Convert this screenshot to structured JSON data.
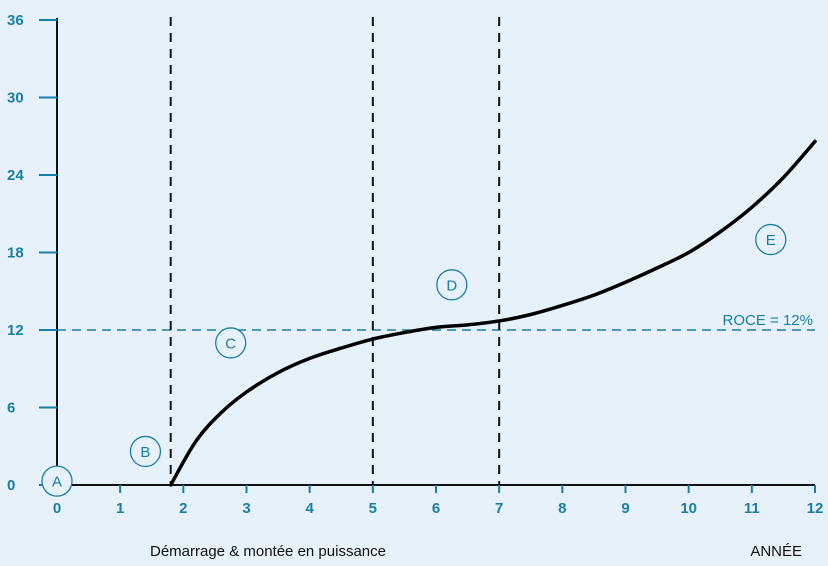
{
  "chart_data": {
    "type": "line",
    "title": "",
    "xlabel": "ANNÉE",
    "ylabel": "",
    "x_ticks": [
      "0",
      "1",
      "2",
      "3",
      "4",
      "5",
      "6",
      "7",
      "8",
      "9",
      "10",
      "11",
      "12"
    ],
    "y_ticks": [
      "0",
      "6",
      "12",
      "18",
      "24",
      "30",
      "36"
    ],
    "xlim": [
      0,
      12
    ],
    "ylim": [
      0,
      36
    ],
    "grid": false,
    "series": [
      {
        "x": [
          0,
          1.8,
          1.8,
          2.2,
          2.6,
          3.0,
          3.5,
          4.0,
          4.5,
          5.0,
          5.5,
          6.0,
          6.5,
          7.0,
          7.5,
          8.0,
          8.5,
          9.0,
          9.5,
          10.0,
          10.5,
          11.0,
          11.5,
          12.0
        ],
        "y": [
          0,
          0,
          0,
          3.4,
          5.6,
          7.2,
          8.7,
          9.8,
          10.6,
          11.3,
          11.8,
          12.2,
          12.4,
          12.7,
          13.2,
          13.9,
          14.7,
          15.7,
          16.8,
          18.0,
          19.6,
          21.5,
          23.8,
          26.6
        ]
      }
    ],
    "reference_lines": [
      {
        "orientation": "horizontal",
        "value": 12,
        "label": "ROCE = 12%",
        "style": "dashed",
        "color": "#1a7fa8"
      },
      {
        "orientation": "vertical",
        "value": 1.8,
        "style": "dashed",
        "color": "#111111"
      },
      {
        "orientation": "vertical",
        "value": 5,
        "style": "dashed",
        "color": "#111111"
      },
      {
        "orientation": "vertical",
        "value": 7,
        "style": "dashed",
        "color": "#111111"
      }
    ],
    "phase_markers": [
      {
        "label": "A",
        "x": 0,
        "y": 0.3
      },
      {
        "label": "B",
        "x": 1.4,
        "y": 2.6
      },
      {
        "label": "C",
        "x": 2.75,
        "y": 11
      },
      {
        "label": "D",
        "x": 6.25,
        "y": 15.5
      },
      {
        "label": "E",
        "x": 11.3,
        "y": 19
      }
    ],
    "annotations": {
      "bottom_left": "Démarrage & montée en puissance",
      "bottom_right": "ANNÉE"
    },
    "colors": {
      "axis": "#1a7fa8",
      "curve": "#000000",
      "background": "#e6f1f9"
    }
  }
}
